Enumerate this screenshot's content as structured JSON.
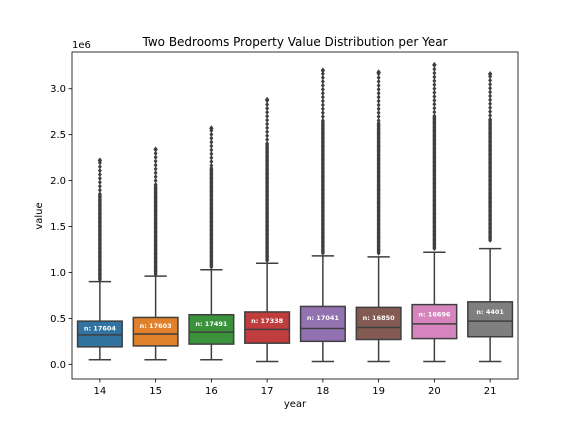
{
  "chart_data": {
    "type": "box",
    "title": "Two Bedrooms Property Value Distribution per Year",
    "xlabel": "year",
    "ylabel": "value",
    "offset_text": "1e6",
    "ylim": [
      -0.16,
      3.4
    ],
    "yticks": [
      "0.0",
      "0.5",
      "1.0",
      "1.5",
      "2.0",
      "2.5",
      "3.0"
    ],
    "ytick_values": [
      0.0,
      0.5,
      1.0,
      1.5,
      2.0,
      2.5,
      3.0
    ],
    "categories": [
      "14",
      "15",
      "16",
      "17",
      "18",
      "19",
      "20",
      "21"
    ],
    "boxes": [
      {
        "year": "14",
        "color": "#3274a1",
        "whisker_low": 0.05,
        "q1": 0.19,
        "median": 0.32,
        "q3": 0.47,
        "whisker_high": 0.9,
        "flier_top": 2.22,
        "flier_gap": 0.02,
        "count_label": "n: 17604"
      },
      {
        "year": "15",
        "color": "#e1812c",
        "whisker_low": 0.05,
        "q1": 0.2,
        "median": 0.33,
        "q3": 0.51,
        "whisker_high": 0.96,
        "flier_top": 2.34,
        "flier_gap": 0.02,
        "count_label": "n: 17603"
      },
      {
        "year": "16",
        "color": "#3a923a",
        "whisker_low": 0.05,
        "q1": 0.22,
        "median": 0.35,
        "q3": 0.54,
        "whisker_high": 1.03,
        "flier_top": 2.57,
        "flier_gap": 0.03,
        "count_label": "n: 17491"
      },
      {
        "year": "17",
        "color": "#c03d3e",
        "whisker_low": 0.03,
        "q1": 0.23,
        "median": 0.38,
        "q3": 0.57,
        "whisker_high": 1.1,
        "flier_top": 2.88,
        "flier_gap": 0.03,
        "count_label": "n: 17338"
      },
      {
        "year": "18",
        "color": "#9372b2",
        "whisker_low": 0.03,
        "q1": 0.25,
        "median": 0.39,
        "q3": 0.63,
        "whisker_high": 1.18,
        "flier_top": 3.2,
        "flier_gap": 0.03,
        "count_label": "n: 17041"
      },
      {
        "year": "19",
        "color": "#845b53",
        "whisker_low": 0.03,
        "q1": 0.27,
        "median": 0.4,
        "q3": 0.62,
        "whisker_high": 1.17,
        "flier_top": 3.18,
        "flier_gap": 0.04,
        "count_label": "n: 16850"
      },
      {
        "year": "20",
        "color": "#d684bd",
        "whisker_low": 0.03,
        "q1": 0.28,
        "median": 0.44,
        "q3": 0.65,
        "whisker_high": 1.22,
        "flier_top": 3.26,
        "flier_gap": 0.04,
        "count_label": "n: 16696"
      },
      {
        "year": "21",
        "color": "#7f7f7f",
        "whisker_low": 0.03,
        "q1": 0.3,
        "median": 0.47,
        "q3": 0.68,
        "whisker_high": 1.26,
        "flier_top": 3.16,
        "flier_gap": 0.09,
        "count_label": "n: 4401"
      }
    ]
  }
}
